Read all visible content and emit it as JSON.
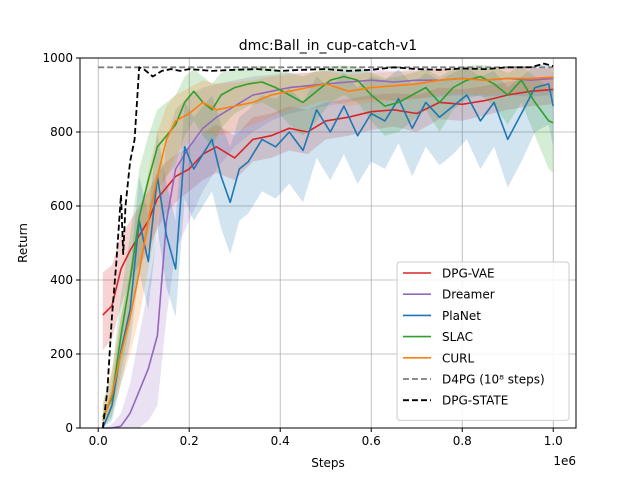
{
  "chart_data": {
    "type": "line",
    "title": "dmc:Ball_in_cup-catch-v1",
    "xlabel": "Steps",
    "ylabel": "Return",
    "x_offset_label": "1e6",
    "xlim": [
      -0.04,
      1.05
    ],
    "ylim": [
      0,
      1000
    ],
    "x_ticks": [
      0.0,
      0.2,
      0.4,
      0.6,
      0.8,
      1.0
    ],
    "x_tick_labels": [
      "0.0",
      "0.2",
      "0.4",
      "0.6",
      "0.8",
      "1.0"
    ],
    "y_ticks": [
      0,
      200,
      400,
      600,
      800,
      1000
    ],
    "y_tick_labels": [
      "0",
      "200",
      "400",
      "600",
      "800",
      "1000"
    ],
    "grid": true,
    "legend_position": "lower right",
    "series": [
      {
        "name": "DPG-VAE",
        "color": "#d62728",
        "style": "solid",
        "x": [
          0.01,
          0.03,
          0.05,
          0.07,
          0.09,
          0.11,
          0.13,
          0.15,
          0.17,
          0.2,
          0.23,
          0.26,
          0.3,
          0.34,
          0.38,
          0.42,
          0.46,
          0.5,
          0.55,
          0.6,
          0.65,
          0.7,
          0.75,
          0.8,
          0.85,
          0.9,
          0.95,
          1.0
        ],
        "y": [
          305,
          330,
          430,
          480,
          520,
          560,
          620,
          650,
          680,
          700,
          740,
          760,
          730,
          780,
          790,
          810,
          800,
          830,
          840,
          855,
          860,
          850,
          880,
          875,
          885,
          900,
          910,
          915
        ],
        "band_low": [
          210,
          240,
          330,
          400,
          440,
          480,
          540,
          580,
          610,
          640,
          670,
          690,
          670,
          720,
          730,
          750,
          740,
          780,
          790,
          805,
          815,
          800,
          835,
          830,
          845,
          860,
          870,
          875
        ],
        "band_high": [
          420,
          440,
          520,
          560,
          600,
          640,
          690,
          720,
          740,
          760,
          800,
          820,
          790,
          840,
          850,
          870,
          860,
          880,
          890,
          900,
          905,
          900,
          920,
          915,
          925,
          935,
          945,
          950
        ]
      },
      {
        "name": "Dreamer",
        "color": "#9467bd",
        "style": "solid",
        "x": [
          0.01,
          0.03,
          0.05,
          0.07,
          0.09,
          0.11,
          0.13,
          0.15,
          0.17,
          0.2,
          0.23,
          0.26,
          0.3,
          0.34,
          0.38,
          0.42,
          0.46,
          0.5,
          0.55,
          0.6,
          0.65,
          0.7,
          0.75,
          0.8,
          0.85,
          0.9,
          0.95,
          1.0
        ],
        "y": [
          0,
          0,
          5,
          40,
          100,
          160,
          250,
          560,
          700,
          760,
          810,
          840,
          870,
          900,
          910,
          920,
          925,
          930,
          935,
          940,
          935,
          940,
          940,
          945,
          940,
          945,
          940,
          945
        ],
        "band_low": [
          0,
          0,
          0,
          0,
          0,
          20,
          60,
          300,
          480,
          560,
          640,
          700,
          760,
          800,
          830,
          850,
          860,
          870,
          880,
          890,
          885,
          890,
          895,
          900,
          895,
          900,
          895,
          900
        ],
        "band_high": [
          0,
          10,
          40,
          120,
          250,
          380,
          520,
          780,
          860,
          900,
          920,
          930,
          940,
          950,
          955,
          960,
          960,
          965,
          965,
          970,
          965,
          968,
          970,
          972,
          970,
          972,
          970,
          972
        ]
      },
      {
        "name": "PlaNet",
        "color": "#1f77b4",
        "style": "solid",
        "x": [
          0.01,
          0.03,
          0.05,
          0.07,
          0.09,
          0.11,
          0.13,
          0.15,
          0.17,
          0.19,
          0.21,
          0.23,
          0.25,
          0.27,
          0.29,
          0.31,
          0.33,
          0.36,
          0.39,
          0.42,
          0.45,
          0.48,
          0.51,
          0.54,
          0.57,
          0.6,
          0.63,
          0.66,
          0.69,
          0.72,
          0.75,
          0.78,
          0.81,
          0.84,
          0.87,
          0.9,
          0.93,
          0.96,
          0.99,
          1.0
        ],
        "y": [
          0,
          60,
          210,
          320,
          560,
          450,
          680,
          520,
          430,
          760,
          700,
          740,
          780,
          680,
          610,
          700,
          720,
          780,
          760,
          800,
          750,
          860,
          800,
          870,
          790,
          850,
          830,
          890,
          810,
          880,
          840,
          870,
          900,
          830,
          880,
          780,
          850,
          920,
          930,
          870
        ],
        "band_low": [
          0,
          20,
          120,
          230,
          420,
          320,
          540,
          380,
          300,
          620,
          560,
          600,
          640,
          540,
          470,
          560,
          580,
          640,
          620,
          660,
          610,
          730,
          670,
          740,
          660,
          720,
          700,
          770,
          680,
          760,
          710,
          740,
          780,
          700,
          760,
          650,
          720,
          800,
          820,
          760
        ],
        "band_high": [
          10,
          120,
          300,
          420,
          680,
          580,
          800,
          660,
          560,
          880,
          840,
          870,
          900,
          820,
          760,
          840,
          860,
          900,
          890,
          920,
          880,
          950,
          920,
          960,
          920,
          950,
          940,
          970,
          930,
          960,
          940,
          960,
          975,
          950,
          965,
          920,
          950,
          980,
          985,
          960
        ]
      },
      {
        "name": "SLAC",
        "color": "#2ca02c",
        "style": "solid",
        "x": [
          0.01,
          0.03,
          0.05,
          0.07,
          0.09,
          0.11,
          0.13,
          0.15,
          0.17,
          0.19,
          0.21,
          0.23,
          0.25,
          0.27,
          0.3,
          0.33,
          0.36,
          0.39,
          0.42,
          0.45,
          0.48,
          0.51,
          0.54,
          0.57,
          0.6,
          0.63,
          0.66,
          0.69,
          0.72,
          0.75,
          0.78,
          0.81,
          0.84,
          0.87,
          0.9,
          0.93,
          0.96,
          0.99,
          1.0
        ],
        "y": [
          30,
          80,
          250,
          400,
          570,
          670,
          760,
          790,
          820,
          880,
          910,
          880,
          860,
          900,
          920,
          930,
          935,
          920,
          900,
          880,
          910,
          940,
          950,
          940,
          900,
          870,
          880,
          900,
          920,
          880,
          920,
          940,
          950,
          930,
          900,
          940,
          880,
          830,
          825
        ],
        "band_low": [
          0,
          30,
          150,
          280,
          430,
          530,
          640,
          680,
          710,
          790,
          830,
          790,
          760,
          810,
          850,
          870,
          880,
          860,
          820,
          790,
          830,
          880,
          900,
          880,
          830,
          790,
          800,
          830,
          860,
          800,
          860,
          890,
          900,
          870,
          820,
          880,
          790,
          700,
          690
        ],
        "band_high": [
          70,
          150,
          360,
          520,
          700,
          790,
          860,
          880,
          900,
          950,
          970,
          950,
          930,
          960,
          970,
          975,
          978,
          970,
          960,
          950,
          965,
          978,
          980,
          975,
          960,
          945,
          950,
          960,
          970,
          950,
          970,
          978,
          982,
          975,
          960,
          978,
          950,
          920,
          915
        ]
      },
      {
        "name": "CURL",
        "color": "#ff7f0e",
        "style": "solid",
        "x": [
          0.01,
          0.03,
          0.05,
          0.07,
          0.09,
          0.11,
          0.13,
          0.15,
          0.17,
          0.2,
          0.23,
          0.26,
          0.3,
          0.34,
          0.38,
          0.42,
          0.46,
          0.5,
          0.55,
          0.6,
          0.65,
          0.7,
          0.75,
          0.8,
          0.85,
          0.9,
          0.95,
          1.0
        ],
        "y": [
          20,
          90,
          200,
          300,
          420,
          560,
          680,
          780,
          830,
          850,
          880,
          860,
          870,
          880,
          900,
          910,
          920,
          930,
          910,
          920,
          925,
          930,
          940,
          945,
          940,
          945,
          945,
          948
        ],
        "band_low": [
          0,
          40,
          120,
          200,
          300,
          430,
          560,
          680,
          740,
          770,
          800,
          790,
          800,
          820,
          840,
          860,
          870,
          885,
          870,
          880,
          885,
          890,
          900,
          905,
          900,
          905,
          905,
          908
        ],
        "band_high": [
          60,
          160,
          300,
          420,
          560,
          690,
          800,
          870,
          900,
          920,
          940,
          930,
          935,
          940,
          950,
          955,
          960,
          965,
          955,
          960,
          962,
          965,
          970,
          972,
          970,
          972,
          972,
          974
        ]
      },
      {
        "name": "D4PG (10⁸ steps)",
        "color": "#7f7f7f",
        "style": "dashed",
        "x": [
          0.0,
          1.0
        ],
        "y": [
          975,
          975
        ]
      },
      {
        "name": "DPG-STATE",
        "color": "#000000",
        "style": "dashed",
        "x": [
          0.01,
          0.02,
          0.03,
          0.04,
          0.05,
          0.055,
          0.06,
          0.07,
          0.08,
          0.09,
          0.1,
          0.12,
          0.14,
          0.16,
          0.18,
          0.2,
          0.25,
          0.3,
          0.35,
          0.4,
          0.45,
          0.5,
          0.55,
          0.6,
          0.65,
          0.7,
          0.75,
          0.8,
          0.85,
          0.9,
          0.95,
          0.98,
          1.0
        ],
        "y": [
          0,
          100,
          300,
          450,
          630,
          470,
          600,
          720,
          780,
          975,
          970,
          950,
          965,
          970,
          965,
          970,
          965,
          968,
          970,
          965,
          968,
          970,
          965,
          968,
          975,
          970,
          968,
          972,
          970,
          975,
          975,
          985,
          978
        ]
      }
    ]
  }
}
